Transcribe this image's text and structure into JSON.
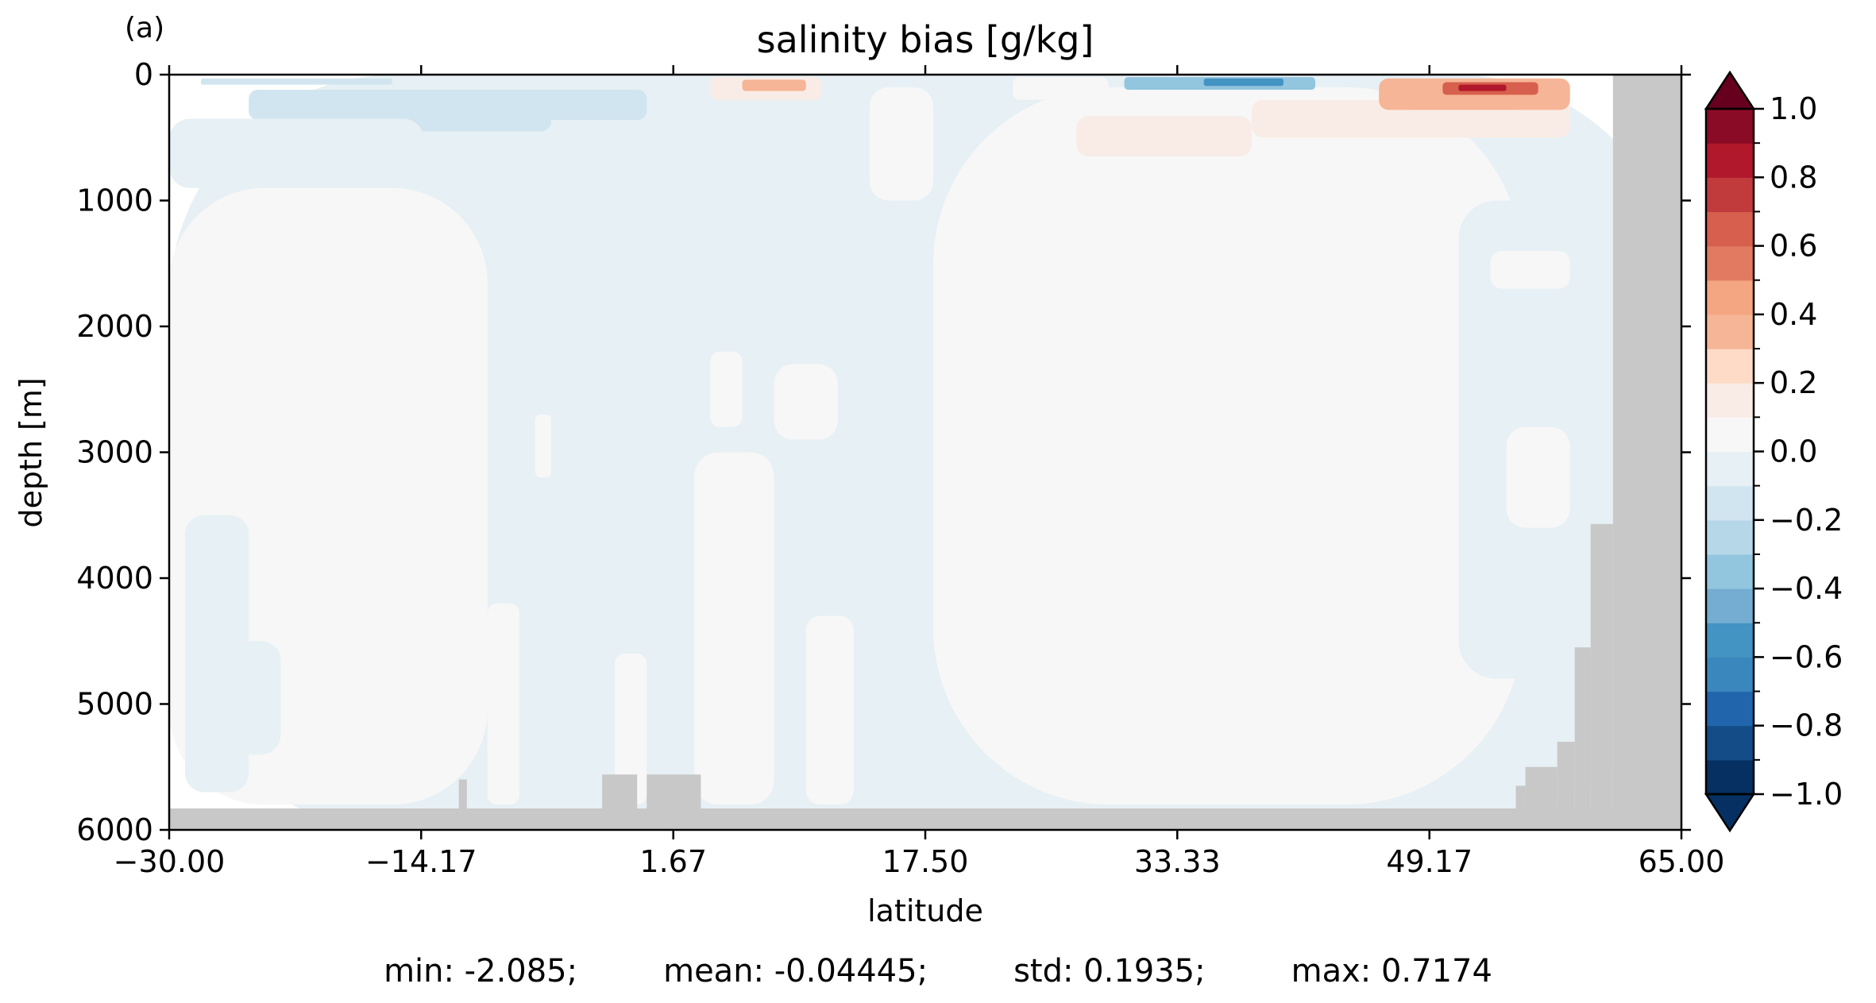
{
  "panel_label": "(a)",
  "colors": {
    "land": "#c8c8c8",
    "axis": "#000000",
    "colormap": [
      "#053061",
      "#134c87",
      "#2166ac",
      "#3a87bd",
      "#4393c3",
      "#74add1",
      "#92c5de",
      "#b6d7e8",
      "#d1e5f0",
      "#e7f0f4",
      "#f7f7f7",
      "#f9ece6",
      "#fddbc7",
      "#f6b596",
      "#f4a582",
      "#e27a62",
      "#d6604d",
      "#c13b3c",
      "#b2182b",
      "#8a0b25",
      "#67001f"
    ]
  },
  "chart_data": {
    "type": "heatmap",
    "title": "salinity bias [g/kg]",
    "xlabel": "latitude",
    "ylabel": "depth [m]",
    "xlim": [
      -30,
      65
    ],
    "ylim": [
      6000,
      0
    ],
    "xticks": [
      "−30.00",
      "−14.17",
      "1.67",
      "17.50",
      "33.33",
      "49.17",
      "65.00"
    ],
    "xtick_values": [
      -30,
      -14.17,
      1.67,
      17.5,
      33.33,
      49.17,
      65
    ],
    "yticks": [
      "0",
      "1000",
      "2000",
      "3000",
      "4000",
      "5000",
      "6000"
    ],
    "ytick_values": [
      0,
      1000,
      2000,
      3000,
      4000,
      5000,
      6000
    ],
    "colorbar": {
      "levels": [
        -1.0,
        -0.9,
        -0.8,
        -0.7,
        -0.6,
        -0.5,
        -0.4,
        -0.3,
        -0.2,
        -0.1,
        0.0,
        0.1,
        0.2,
        0.3,
        0.4,
        0.5,
        0.6,
        0.7,
        0.8,
        0.9,
        1.0
      ],
      "tick_labels": [
        "−1.0",
        "−0.8",
        "−0.6",
        "−0.4",
        "−0.2",
        "0.0",
        "0.2",
        "0.4",
        "0.6",
        "0.8",
        "1.0"
      ],
      "tick_values": [
        -1.0,
        -0.8,
        -0.6,
        -0.4,
        -0.2,
        0.0,
        0.2,
        0.4,
        0.6,
        0.8,
        1.0
      ],
      "extend": "both"
    },
    "regions": [
      {
        "lat": [
          -30,
          65
        ],
        "depth": [
          0,
          6000
        ],
        "value": -0.05
      },
      {
        "lat": [
          -30,
          -10
        ],
        "depth": [
          900,
          5800
        ],
        "value": 0.05
      },
      {
        "lat": [
          -29,
          -25
        ],
        "depth": [
          3500,
          5700
        ],
        "value": -0.05
      },
      {
        "lat": [
          -27,
          -23
        ],
        "depth": [
          4500,
          5400
        ],
        "value": -0.05
      },
      {
        "lat": [
          -10,
          -8
        ],
        "depth": [
          4200,
          5800
        ],
        "value": 0.05
      },
      {
        "lat": [
          -2,
          0
        ],
        "depth": [
          4600,
          5800
        ],
        "value": 0.05
      },
      {
        "lat": [
          3,
          8
        ],
        "depth": [
          3000,
          5800
        ],
        "value": 0.05
      },
      {
        "lat": [
          10,
          13
        ],
        "depth": [
          4300,
          5800
        ],
        "value": 0.05
      },
      {
        "lat": [
          18,
          55
        ],
        "depth": [
          100,
          5800
        ],
        "value": 0.05
      },
      {
        "lat": [
          14,
          18
        ],
        "depth": [
          100,
          1000
        ],
        "value": 0.05
      },
      {
        "lat": [
          8,
          12
        ],
        "depth": [
          2300,
          2900
        ],
        "value": 0.05
      },
      {
        "lat": [
          4,
          6
        ],
        "depth": [
          2200,
          2800
        ],
        "value": 0.05
      },
      {
        "lat": [
          -7,
          -6
        ],
        "depth": [
          2700,
          3200
        ],
        "value": 0.05
      },
      {
        "lat": [
          38,
          58
        ],
        "depth": [
          200,
          500
        ],
        "value": 0.15
      },
      {
        "lat": [
          27,
          38
        ],
        "depth": [
          330,
          650
        ],
        "value": 0.15
      },
      {
        "lat": [
          51,
          59
        ],
        "depth": [
          1000,
          4800
        ],
        "value": -0.05
      },
      {
        "lat": [
          53,
          58
        ],
        "depth": [
          1400,
          1700
        ],
        "value": 0.05
      },
      {
        "lat": [
          54,
          58
        ],
        "depth": [
          2800,
          3600
        ],
        "value": 0.05
      },
      {
        "lat": [
          23,
          29
        ],
        "depth": [
          20,
          200
        ],
        "value": 0.05
      },
      {
        "lat": [
          4,
          11
        ],
        "depth": [
          20,
          200
        ],
        "value": 0.15
      },
      {
        "lat": [
          -25,
          0
        ],
        "depth": [
          120,
          360
        ],
        "value": -0.15
      },
      {
        "lat": [
          -16,
          -6
        ],
        "depth": [
          180,
          450
        ],
        "value": -0.15
      },
      {
        "lat": [
          -30,
          -14
        ],
        "depth": [
          350,
          900
        ],
        "value": -0.1
      },
      {
        "lat": [
          -28,
          -16
        ],
        "depth": [
          30,
          80
        ],
        "value": -0.15
      },
      {
        "lat": [
          30,
          42
        ],
        "depth": [
          20,
          120
        ],
        "value": -0.35
      },
      {
        "lat": [
          35,
          40
        ],
        "depth": [
          30,
          90
        ],
        "value": -0.6
      },
      {
        "lat": [
          6,
          10
        ],
        "depth": [
          40,
          130
        ],
        "value": 0.35
      },
      {
        "lat": [
          46,
          58
        ],
        "depth": [
          30,
          280
        ],
        "value": 0.35
      },
      {
        "lat": [
          50,
          56
        ],
        "depth": [
          60,
          160
        ],
        "value": 0.6
      },
      {
        "lat": [
          51,
          54
        ],
        "depth": [
          80,
          130
        ],
        "value": 0.85
      }
    ],
    "land": [
      {
        "lat": [
          -30,
          65
        ],
        "depth": [
          5830,
          6000
        ]
      },
      {
        "lat": [
          60.7,
          65
        ],
        "depth": [
          0,
          6000
        ]
      },
      {
        "lat": [
          59.3,
          60.7
        ],
        "depth": [
          3570,
          6000
        ]
      },
      {
        "lat": [
          58.3,
          59.3
        ],
        "depth": [
          4550,
          6000
        ]
      },
      {
        "lat": [
          57.2,
          58.3
        ],
        "depth": [
          5300,
          6000
        ]
      },
      {
        "lat": [
          55.2,
          57.2
        ],
        "depth": [
          5500,
          6000
        ]
      },
      {
        "lat": [
          -2.8,
          -0.6
        ],
        "depth": [
          5560,
          6000
        ]
      },
      {
        "lat": [
          0.0,
          3.4
        ],
        "depth": [
          5560,
          6000
        ]
      },
      {
        "lat": [
          -11.8,
          -11.3
        ],
        "depth": [
          5600,
          6000
        ]
      },
      {
        "lat": [
          54.6,
          55.2
        ],
        "depth": [
          5650,
          6000
        ]
      }
    ],
    "stats": {
      "min": "min: -2.085;",
      "mean": "mean: -0.04445;",
      "std": "std: 0.1935;",
      "max": "max: 0.7174"
    }
  }
}
